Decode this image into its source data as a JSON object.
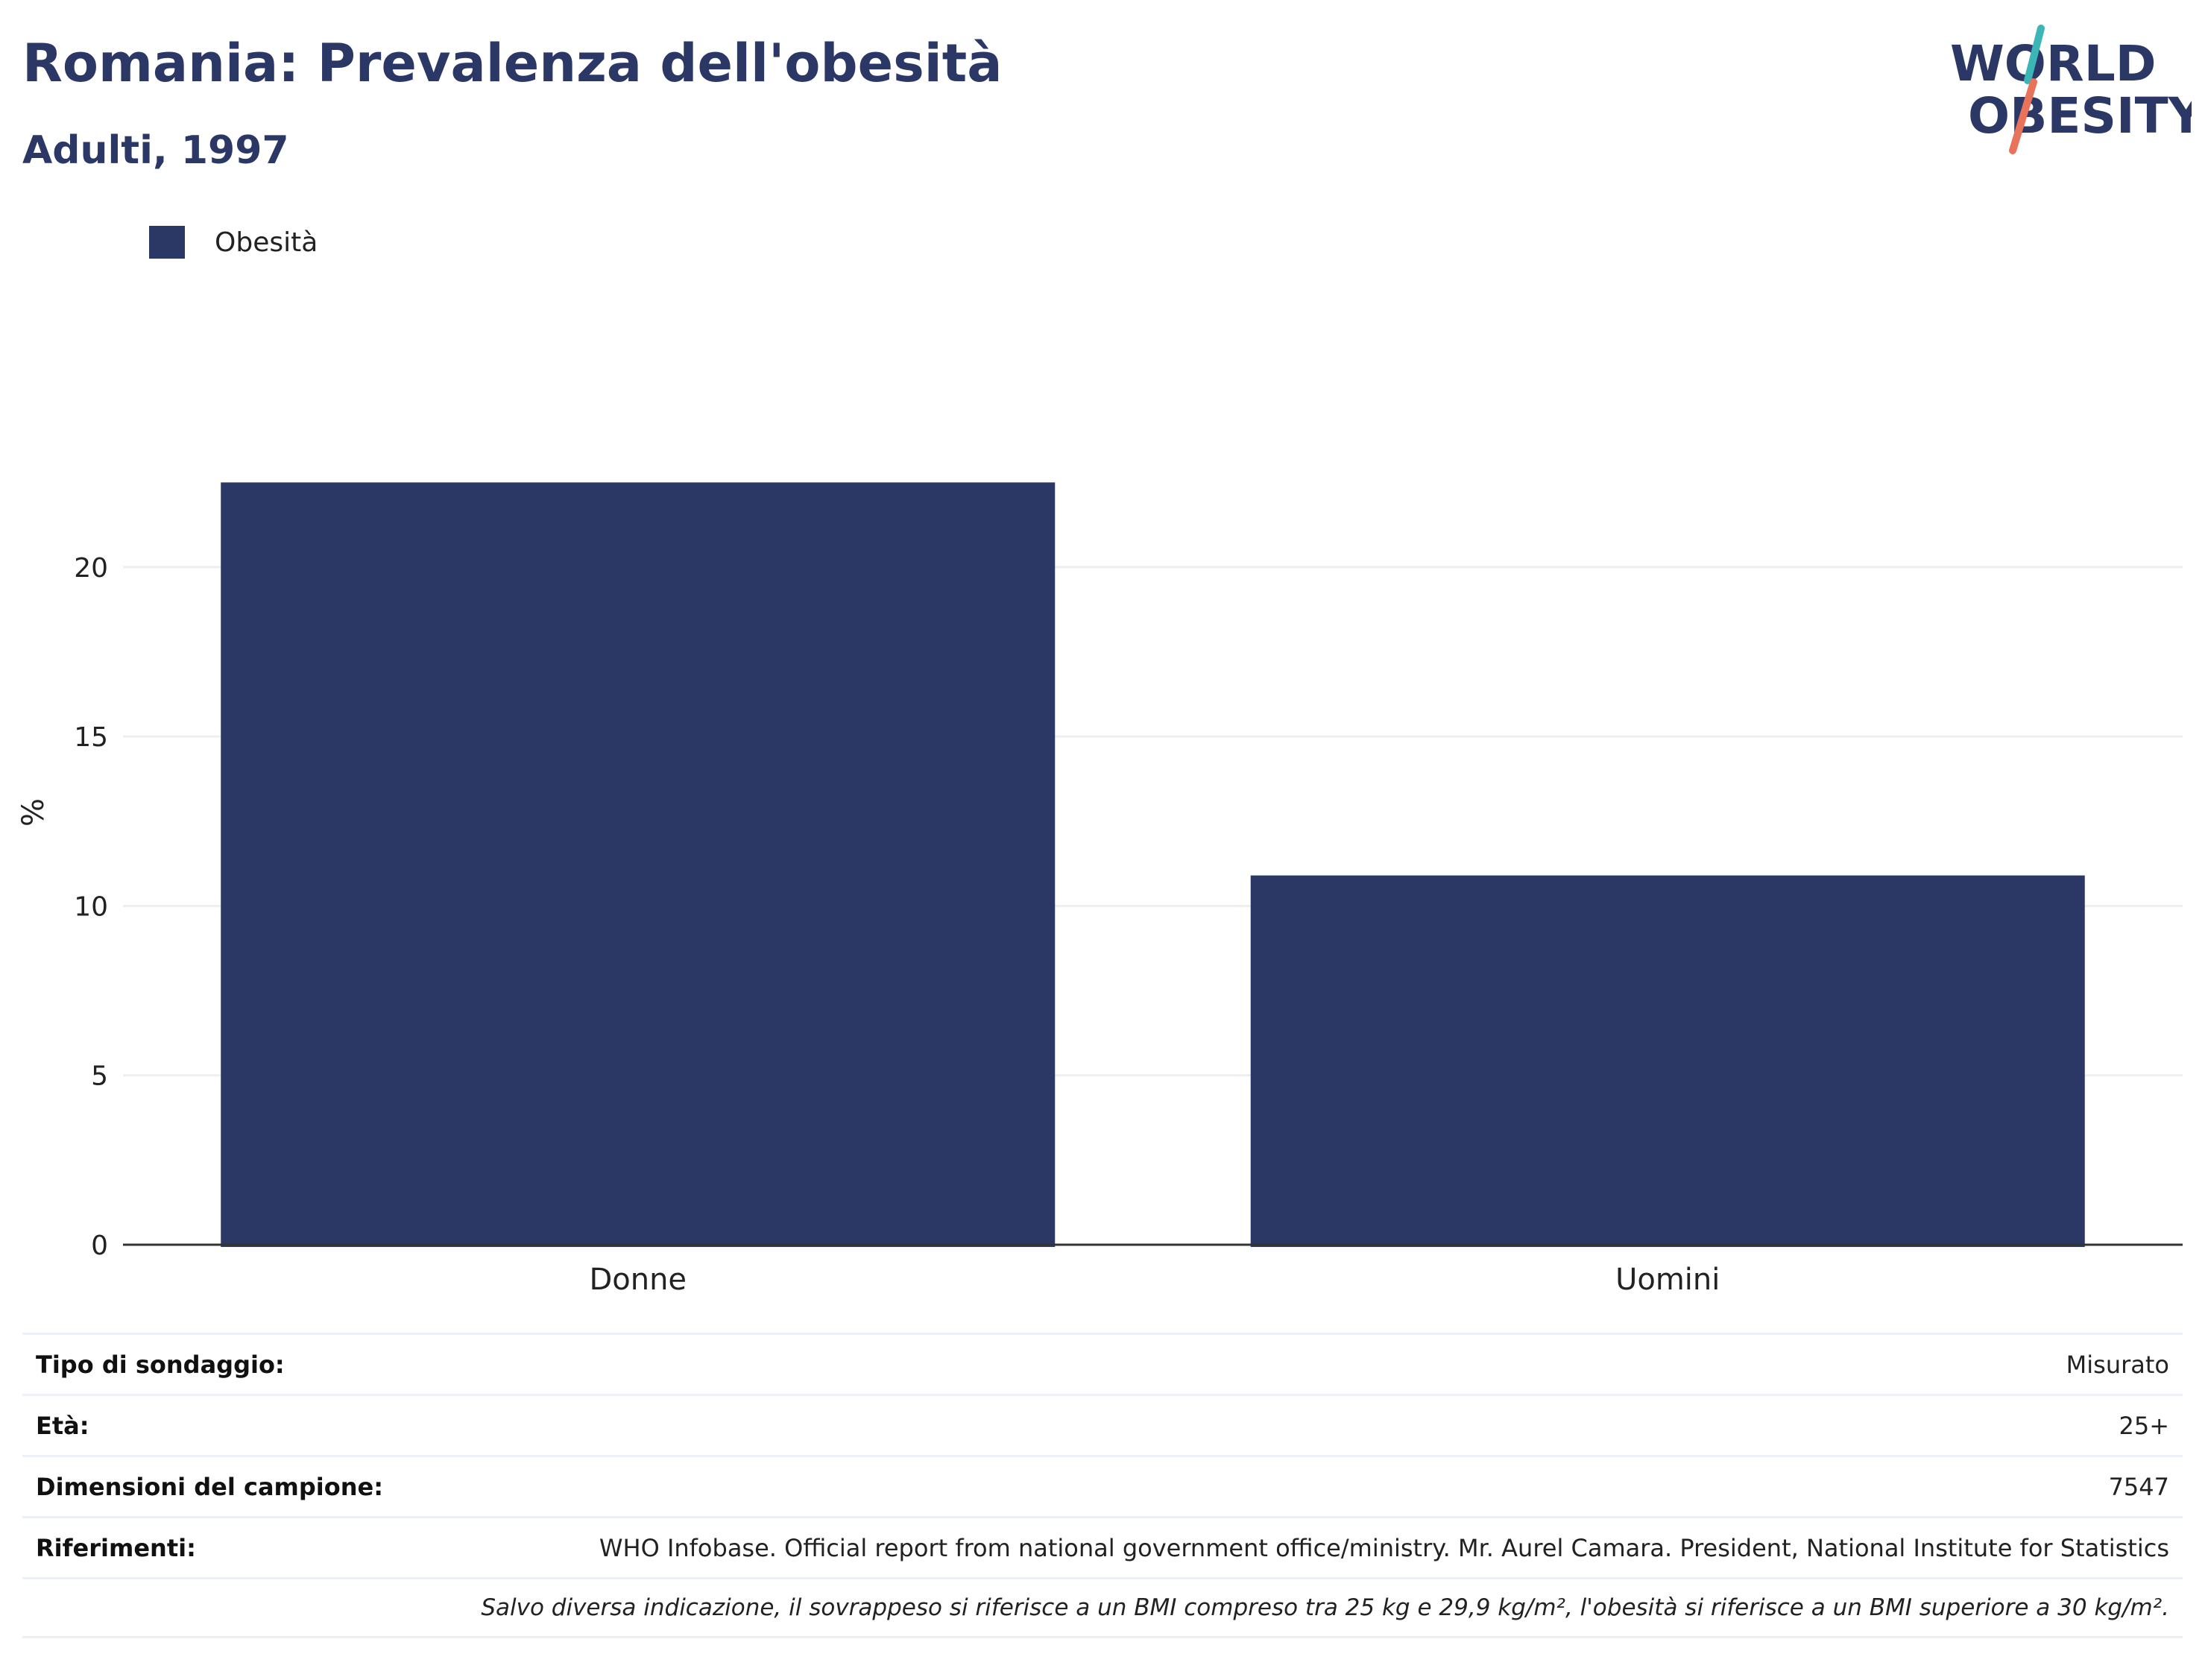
{
  "header": {
    "title": "Romania: Prevalenza dell'obesità",
    "subtitle": "Adulti, 1997"
  },
  "logo": {
    "line1": "WORLD",
    "line2": "OBESITY",
    "colors": {
      "text": "#2b3765",
      "slash_top": "#3bb5b5",
      "slash_bottom": "#e8735a"
    }
  },
  "chart_data": {
    "type": "bar",
    "categories": [
      "Donne",
      "Uomini"
    ],
    "series": [
      {
        "name": "Obesità",
        "values": [
          22.5,
          10.9
        ],
        "color": "#2b3765"
      }
    ],
    "xlabel": "",
    "ylabel": "%",
    "ylim": [
      0,
      25.3
    ],
    "yticks": [
      0,
      5,
      10,
      15,
      20
    ],
    "grid": true,
    "legend_position": "top-left"
  },
  "info": {
    "rows": [
      {
        "key": "Tipo di sondaggio:",
        "value": "Misurato"
      },
      {
        "key": "Età:",
        "value": "25+"
      },
      {
        "key": "Dimensioni del campione:",
        "value": "7547"
      },
      {
        "key": "Riferimenti:",
        "value": "WHO Infobase. Official report from national government office/ministry. Mr. Aurel Camara. President, National Institute for Statistics"
      }
    ],
    "note": "Salvo diversa indicazione, il sovrappeso si riferisce a un BMI compreso tra 25 kg e 29,9 kg/m², l'obesità si riferisce a un BMI superiore a 30 kg/m²."
  }
}
